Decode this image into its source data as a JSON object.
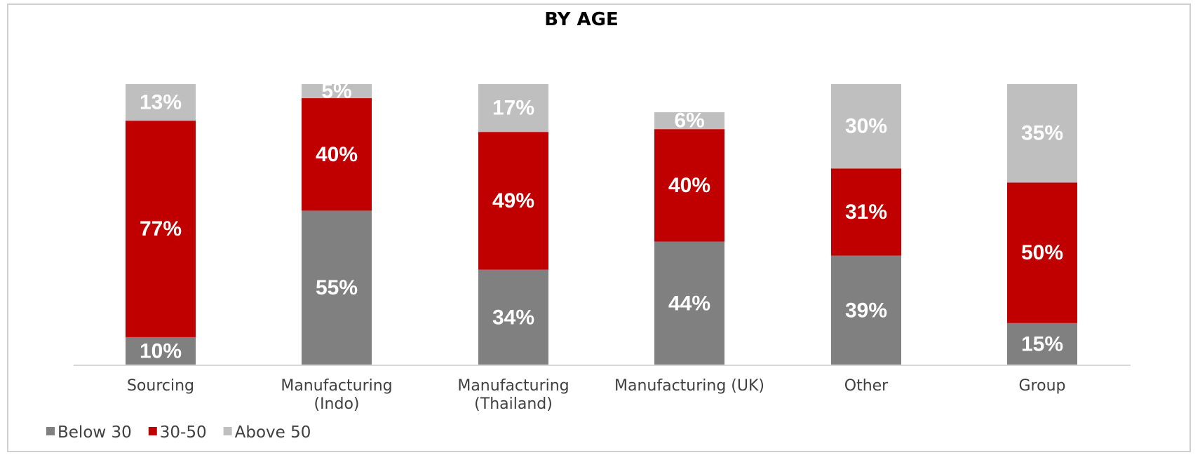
{
  "chart_data": {
    "type": "bar",
    "stacked": true,
    "title": "BY AGE",
    "categories": [
      [
        "Sourcing"
      ],
      [
        "Manufacturing",
        "(Indo)"
      ],
      [
        "Manufacturing",
        "(Thailand)"
      ],
      [
        "Manufacturing (UK)"
      ],
      [
        "Other"
      ],
      [
        "Group"
      ]
    ],
    "series": [
      {
        "name": "Below 30",
        "color": "#808080",
        "values": [
          10,
          55,
          34,
          44,
          39,
          15
        ]
      },
      {
        "name": "30-50",
        "color": "#c00000",
        "values": [
          77,
          40,
          49,
          40,
          31,
          50
        ]
      },
      {
        "name": "Above 50",
        "color": "#bfbfbf",
        "values": [
          13,
          5,
          17,
          6,
          30,
          35
        ]
      }
    ],
    "value_suffix": "%",
    "ylim": [
      0,
      100
    ],
    "grid": false,
    "legend_position": "bottom-left"
  }
}
